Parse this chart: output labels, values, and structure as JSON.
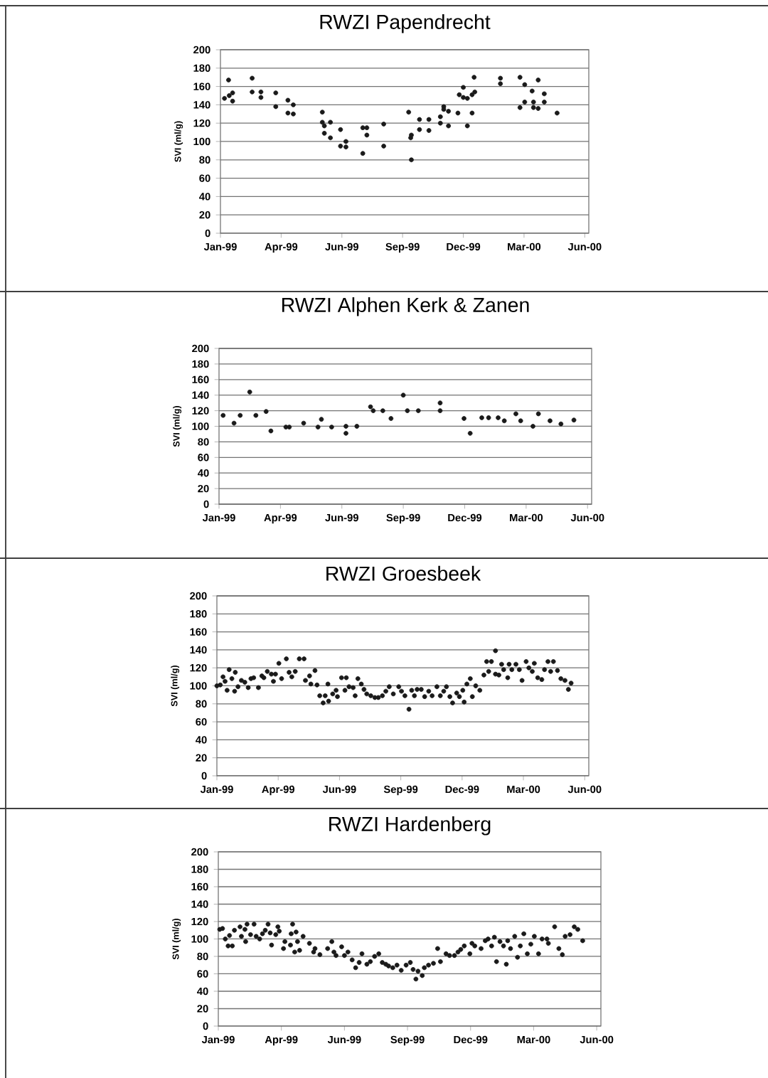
{
  "chart_data": [
    {
      "type": "scatter",
      "title": "RWZI Papendrecht",
      "ylabel": "SVI (ml/g)",
      "color": "#1a1a1a",
      "marker": "circle",
      "grid": "y",
      "xlim": [
        "1999-01-01",
        "2000-06-30"
      ],
      "ylim": [
        0,
        200
      ],
      "yticks": [
        0,
        20,
        40,
        60,
        80,
        100,
        120,
        140,
        160,
        180,
        200
      ],
      "xticks": [
        {
          "value": "1999-01-01",
          "label": "Jan-99"
        },
        {
          "value": "1999-04-01",
          "label": "Apr-99"
        },
        {
          "value": "1999-06-30",
          "label": "Jun-99"
        },
        {
          "value": "1999-09-28",
          "label": "Sep-99"
        },
        {
          "value": "1999-12-27",
          "label": "Dec-99"
        },
        {
          "value": "2000-03-26",
          "label": "Mar-00"
        },
        {
          "value": "2000-06-24",
          "label": "Jun-00"
        }
      ],
      "x": [
        "1999-01-07",
        "1999-01-13",
        "1999-01-14",
        "1999-01-19",
        "1999-01-19",
        "1999-02-17",
        "1999-02-17",
        "1999-03-02",
        "1999-03-02",
        "1999-03-24",
        "1999-03-24",
        "1999-04-11",
        "1999-04-11",
        "1999-04-19",
        "1999-04-19",
        "1999-06-01",
        "1999-06-01",
        "1999-06-04",
        "1999-06-04",
        "1999-06-13",
        "1999-06-13",
        "1999-06-28",
        "1999-06-28",
        "1999-07-06",
        "1999-07-06",
        "1999-07-31",
        "1999-07-31",
        "1999-08-06",
        "1999-08-06",
        "1999-08-31",
        "1999-08-31",
        "1999-10-07",
        "1999-10-10",
        "1999-10-11",
        "1999-10-11",
        "1999-10-23",
        "1999-10-23",
        "1999-11-06",
        "1999-11-06",
        "1999-11-23",
        "1999-11-23",
        "1999-11-28",
        "1999-11-28",
        "1999-12-05",
        "1999-12-05",
        "1999-12-19",
        "1999-12-21",
        "1999-12-27",
        "1999-12-27",
        "2000-01-02",
        "2000-01-02",
        "2000-01-09",
        "2000-01-09",
        "2000-01-12",
        "2000-01-13",
        "2000-02-20",
        "2000-02-20",
        "2000-03-20",
        "2000-03-20",
        "2000-03-27",
        "2000-03-27",
        "2000-04-07",
        "2000-04-09",
        "2000-04-09",
        "2000-04-16",
        "2000-04-16",
        "2000-04-25",
        "2000-04-25",
        "2000-05-14"
      ],
      "values": [
        147,
        167,
        150,
        153,
        144,
        169,
        154,
        154,
        148,
        153,
        138,
        145,
        131,
        140,
        130,
        132,
        121,
        117,
        109,
        121,
        104,
        113,
        95,
        100,
        94,
        115,
        87,
        115,
        107,
        119,
        95,
        132,
        104,
        107,
        80,
        124,
        113,
        124,
        112,
        127,
        120,
        138,
        135,
        133,
        117,
        131,
        151,
        159,
        148,
        147,
        117,
        151,
        131,
        170,
        154,
        169,
        163,
        170,
        137,
        162,
        143,
        155,
        143,
        137,
        167,
        136,
        152,
        143,
        131
      ]
    },
    {
      "type": "scatter",
      "title": "RWZI Alphen Kerk & Zanen",
      "ylabel": "SVI (ml/g)",
      "color": "#1a1a1a",
      "marker": "circle",
      "grid": "y",
      "xlim": [
        "1999-01-01",
        "2000-06-30"
      ],
      "ylim": [
        0,
        200
      ],
      "yticks": [
        0,
        20,
        40,
        60,
        80,
        100,
        120,
        140,
        160,
        180,
        200
      ],
      "xticks": [
        {
          "value": "1999-01-01",
          "label": "Jan-99"
        },
        {
          "value": "1999-04-01",
          "label": "Apr-99"
        },
        {
          "value": "1999-06-30",
          "label": "Jun-99"
        },
        {
          "value": "1999-09-28",
          "label": "Sep-99"
        },
        {
          "value": "1999-12-27",
          "label": "Dec-99"
        },
        {
          "value": "2000-03-26",
          "label": "Mar-00"
        },
        {
          "value": "2000-06-24",
          "label": "Jun-00"
        }
      ],
      "x": [
        "1999-01-07",
        "1999-01-23",
        "1999-02-01",
        "1999-02-15",
        "1999-02-24",
        "1999-03-11",
        "1999-03-18",
        "1999-04-09",
        "1999-04-14",
        "1999-05-05",
        "1999-05-26",
        "1999-05-31",
        "1999-06-15",
        "1999-07-06",
        "1999-07-06",
        "1999-07-22",
        "1999-08-11",
        "1999-08-15",
        "1999-08-29",
        "1999-09-10",
        "1999-09-28",
        "1999-10-04",
        "1999-10-20",
        "1999-11-21",
        "1999-11-21",
        "1999-12-26",
        "2000-01-04",
        "2000-01-21",
        "2000-01-31",
        "2000-02-14",
        "2000-02-23",
        "2000-03-11",
        "2000-03-18",
        "2000-04-05",
        "2000-04-13",
        "2000-04-30",
        "2000-05-16",
        "2000-06-04"
      ],
      "values": [
        114,
        104,
        114,
        144,
        114,
        119,
        94,
        99,
        99,
        104,
        99,
        109,
        99,
        100,
        91,
        100,
        125,
        120,
        120,
        110,
        140,
        120,
        120,
        130,
        120,
        110,
        91,
        111,
        111,
        111,
        107,
        116,
        107,
        100,
        116,
        107,
        103,
        108
      ]
    },
    {
      "type": "scatter",
      "title": "RWZI Groesbeek",
      "ylabel": "SVI (ml/g)",
      "color": "#1a1a1a",
      "marker": "circle",
      "grid": "y",
      "xlim": [
        "1999-01-01",
        "2000-06-30"
      ],
      "ylim": [
        0,
        200
      ],
      "yticks": [
        0,
        20,
        40,
        60,
        80,
        100,
        120,
        140,
        160,
        180,
        200
      ],
      "xticks": [
        {
          "value": "1999-01-01",
          "label": "Jan-99"
        },
        {
          "value": "1999-04-01",
          "label": "Apr-99"
        },
        {
          "value": "1999-06-30",
          "label": "Jun-99"
        },
        {
          "value": "1999-09-28",
          "label": "Sep-99"
        },
        {
          "value": "1999-12-27",
          "label": "Dec-99"
        },
        {
          "value": "2000-03-26",
          "label": "Mar-00"
        },
        {
          "value": "2000-06-24",
          "label": "Jun-00"
        }
      ],
      "x": [
        "1999-01-01",
        "1999-01-06",
        "1999-01-10",
        "1999-01-13",
        "1999-01-16",
        "1999-01-19",
        "1999-01-23",
        "1999-01-27",
        "1999-01-28",
        "1999-02-01",
        "1999-02-06",
        "1999-02-11",
        "1999-02-16",
        "1999-02-20",
        "1999-02-24",
        "1999-03-03",
        "1999-03-08",
        "1999-03-11",
        "1999-03-16",
        "1999-03-22",
        "1999-03-25",
        "1999-03-28",
        "1999-04-02",
        "1999-04-06",
        "1999-04-13",
        "1999-04-17",
        "1999-04-21",
        "1999-04-26",
        "1999-05-02",
        "1999-05-09",
        "1999-05-11",
        "1999-05-17",
        "1999-05-19",
        "1999-05-25",
        "1999-05-28",
        "1999-06-01",
        "1999-06-06",
        "1999-06-09",
        "1999-06-13",
        "1999-06-14",
        "1999-06-20",
        "1999-06-25",
        "1999-06-27",
        "1999-07-03",
        "1999-07-08",
        "1999-07-10",
        "1999-07-14",
        "1999-07-20",
        "1999-07-23",
        "1999-07-27",
        "1999-08-01",
        "1999-08-05",
        "1999-08-09",
        "1999-08-15",
        "1999-08-21",
        "1999-08-26",
        "1999-09-01",
        "1999-09-06",
        "1999-09-11",
        "1999-09-17",
        "1999-09-25",
        "1999-09-29",
        "1999-10-04",
        "1999-10-10",
        "1999-10-14",
        "1999-10-18",
        "1999-10-22",
        "1999-10-28",
        "1999-11-02",
        "1999-11-08",
        "1999-11-13",
        "1999-11-20",
        "1999-11-25",
        "1999-11-30",
        "1999-12-04",
        "1999-12-09",
        "1999-12-13",
        "1999-12-19",
        "1999-12-23",
        "1999-12-28",
        "1999-12-30",
        "2000-01-03",
        "2000-01-08",
        "2000-01-11",
        "2000-01-16",
        "2000-01-22",
        "2000-01-28",
        "2000-02-01",
        "2000-02-04",
        "2000-02-08",
        "2000-02-14",
        "2000-02-14",
        "2000-02-19",
        "2000-02-23",
        "2000-02-26",
        "2000-03-03",
        "2000-03-05",
        "2000-03-09",
        "2000-03-15",
        "2000-03-20",
        "2000-03-24",
        "2000-03-30",
        "2000-04-03",
        "2000-04-08",
        "2000-04-11",
        "2000-04-16",
        "2000-04-22",
        "2000-04-26",
        "2000-05-01",
        "2000-05-05",
        "2000-05-09",
        "2000-05-15",
        "2000-05-20",
        "2000-05-26",
        "2000-05-31",
        "2000-06-04"
      ],
      "values": [
        100,
        101,
        110,
        105,
        95,
        118,
        108,
        94,
        115,
        99,
        106,
        104,
        98,
        108,
        109,
        98,
        111,
        109,
        116,
        113,
        105,
        113,
        125,
        108,
        130,
        115,
        110,
        116,
        130,
        130,
        106,
        111,
        102,
        117,
        101,
        89,
        81,
        89,
        102,
        83,
        91,
        95,
        88,
        109,
        95,
        109,
        99,
        98,
        89,
        108,
        102,
        96,
        91,
        89,
        87,
        87,
        89,
        94,
        99,
        91,
        99,
        94,
        89,
        74,
        95,
        89,
        96,
        96,
        88,
        94,
        89,
        99,
        89,
        94,
        99,
        88,
        81,
        92,
        88,
        95,
        82,
        102,
        108,
        88,
        100,
        95,
        112,
        127,
        116,
        127,
        139,
        113,
        112,
        124,
        118,
        109,
        124,
        118,
        124,
        118,
        106,
        127,
        120,
        116,
        125,
        109,
        107,
        118,
        127,
        116,
        127,
        117,
        108,
        106,
        96,
        103
      ]
    },
    {
      "type": "scatter",
      "title": "RWZI Hardenberg",
      "ylabel": "SVI (ml/g)",
      "color": "#1a1a1a",
      "marker": "circle",
      "grid": "y",
      "xlim": [
        "1999-01-01",
        "2000-06-30"
      ],
      "ylim": [
        0,
        200
      ],
      "yticks": [
        0,
        20,
        40,
        60,
        80,
        100,
        120,
        140,
        160,
        180,
        200
      ],
      "xticks": [
        {
          "value": "1999-01-01",
          "label": "Jan-99"
        },
        {
          "value": "1999-04-01",
          "label": "Apr-99"
        },
        {
          "value": "1999-06-30",
          "label": "Jun-99"
        },
        {
          "value": "1999-09-28",
          "label": "Sep-99"
        },
        {
          "value": "1999-12-27",
          "label": "Dec-99"
        },
        {
          "value": "2000-03-26",
          "label": "Mar-00"
        },
        {
          "value": "2000-06-24",
          "label": "Jun-00"
        }
      ],
      "x": [
        "1999-01-03",
        "1999-01-07",
        "1999-01-11",
        "1999-01-15",
        "1999-01-17",
        "1999-01-21",
        "1999-01-24",
        "1999-02-01",
        "1999-02-03",
        "1999-02-08",
        "1999-02-09",
        "1999-02-11",
        "1999-02-16",
        "1999-02-21",
        "1999-02-24",
        "1999-03-01",
        "1999-03-05",
        "1999-03-09",
        "1999-03-13",
        "1999-03-16",
        "1999-03-18",
        "1999-03-24",
        "1999-03-27",
        "1999-03-29",
        "1999-04-04",
        "1999-04-06",
        "1999-04-14",
        "1999-04-15",
        "1999-04-17",
        "1999-04-20",
        "1999-04-22",
        "1999-04-24",
        "1999-04-27",
        "1999-05-02",
        "1999-05-11",
        "1999-05-17",
        "1999-05-19",
        "1999-05-26",
        "1999-06-06",
        "1999-06-12",
        "1999-06-15",
        "1999-06-18",
        "1999-06-26",
        "1999-06-30",
        "1999-07-05",
        "1999-07-11",
        "1999-07-16",
        "1999-07-21",
        "1999-07-25",
        "1999-08-01",
        "1999-08-06",
        "1999-08-12",
        "1999-08-18",
        "1999-08-23",
        "1999-08-28",
        "1999-09-01",
        "1999-09-07",
        "1999-09-13",
        "1999-09-19",
        "1999-09-26",
        "1999-10-02",
        "1999-10-06",
        "1999-10-10",
        "1999-10-13",
        "1999-10-19",
        "1999-10-22",
        "1999-10-28",
        "1999-11-04",
        "1999-11-10",
        "1999-11-14",
        "1999-11-22",
        "1999-11-27",
        "1999-12-04",
        "1999-12-09",
        "1999-12-13",
        "1999-12-18",
        "1999-12-26",
        "1999-12-29",
        "2000-01-02",
        "2000-01-11",
        "2000-01-17",
        "2000-01-21",
        "2000-01-26",
        "2000-01-30",
        "2000-02-02",
        "2000-02-07",
        "2000-02-12",
        "2000-02-16",
        "2000-02-18",
        "2000-02-22",
        "2000-02-28",
        "2000-03-03",
        "2000-03-07",
        "2000-03-12",
        "2000-03-17",
        "2000-03-22",
        "2000-03-27",
        "2000-04-02",
        "2000-04-07",
        "2000-04-14",
        "2000-04-16",
        "2000-04-25",
        "2000-05-01",
        "2000-05-06",
        "2000-05-10",
        "2000-05-17",
        "2000-05-23",
        "2000-05-28",
        "2000-06-04"
      ],
      "values": [
        111,
        112,
        100,
        92,
        104,
        92,
        110,
        114,
        103,
        111,
        97,
        117,
        105,
        117,
        103,
        100,
        106,
        110,
        117,
        107,
        93,
        105,
        114,
        109,
        89,
        97,
        93,
        106,
        117,
        85,
        108,
        97,
        87,
        103,
        95,
        85,
        89,
        82,
        89,
        97,
        85,
        81,
        91,
        81,
        85,
        76,
        67,
        73,
        83,
        71,
        74,
        80,
        83,
        73,
        71,
        69,
        67,
        70,
        64,
        70,
        73,
        65,
        54,
        63,
        58,
        67,
        70,
        72,
        89,
        74,
        83,
        81,
        81,
        85,
        88,
        92,
        83,
        95,
        92,
        89,
        98,
        100,
        92,
        102,
        74,
        97,
        92,
        71,
        98,
        89,
        103,
        79,
        92,
        106,
        83,
        94,
        103,
        83,
        100,
        100,
        95,
        114,
        89,
        82,
        103,
        105,
        114,
        111,
        98
      ]
    }
  ]
}
